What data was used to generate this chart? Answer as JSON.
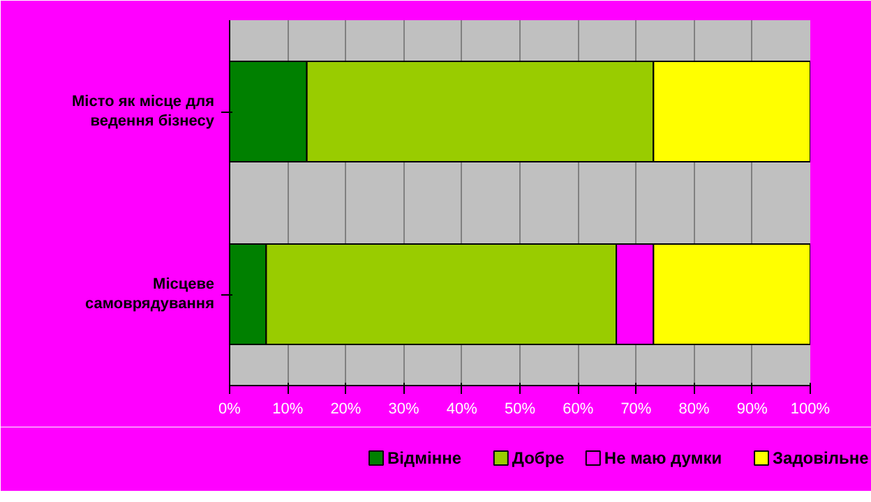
{
  "chart_data": {
    "type": "bar",
    "orientation": "horizontal",
    "stacked": true,
    "categories": [
      "Місто як місце для\nведення бізнесу",
      "Місцеве\nсамоврядування"
    ],
    "series": [
      {
        "name": "Відмінне",
        "color": "#008000",
        "values": [
          13.3,
          6.3
        ]
      },
      {
        "name": "Добре",
        "color": "#99cc00",
        "values": [
          59.7,
          60.3
        ]
      },
      {
        "name": "Не маю думки",
        "color": "#ff00ff",
        "values": [
          0,
          6.4
        ]
      },
      {
        "name": "Задовільне",
        "color": "#ffff00",
        "values": [
          27.0,
          27.0
        ]
      }
    ],
    "xlim": [
      0,
      100
    ],
    "xticks": [
      {
        "value": 0,
        "label": "0%"
      },
      {
        "value": 10,
        "label": "10%"
      },
      {
        "value": 20,
        "label": "20%"
      },
      {
        "value": 30,
        "label": "30%"
      },
      {
        "value": 40,
        "label": "40%"
      },
      {
        "value": 50,
        "label": "50%"
      },
      {
        "value": 60,
        "label": "60%"
      },
      {
        "value": 70,
        "label": "70%"
      },
      {
        "value": 80,
        "label": "80%"
      },
      {
        "value": 90,
        "label": "90%"
      },
      {
        "value": 100,
        "label": "100%"
      }
    ],
    "grid": "x",
    "legend": "bottom"
  }
}
